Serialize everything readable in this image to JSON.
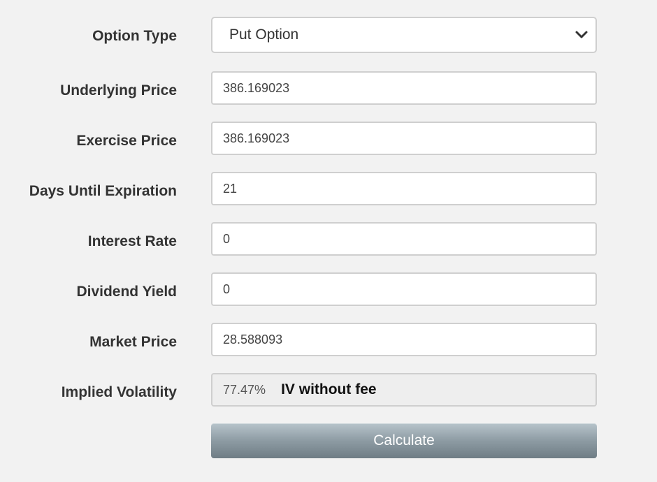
{
  "form": {
    "option_type": {
      "label": "Option Type",
      "value": "Put Option"
    },
    "underlying_price": {
      "label": "Underlying Price",
      "value": "386.169023"
    },
    "exercise_price": {
      "label": "Exercise Price",
      "value": "386.169023"
    },
    "days_until_expiration": {
      "label": "Days Until Expiration",
      "value": "21"
    },
    "interest_rate": {
      "label": "Interest Rate",
      "value": "0"
    },
    "dividend_yield": {
      "label": "Dividend Yield",
      "value": "0"
    },
    "market_price": {
      "label": "Market Price",
      "value": "28.588093"
    },
    "implied_volatility": {
      "label": "Implied Volatility",
      "value": "77.47%",
      "note": "IV without fee"
    },
    "calculate_label": "Calculate"
  },
  "icons": {
    "select_arrow": "chevron-down-icon"
  },
  "colors": {
    "background": "#f2f2f2",
    "label_text": "#333333",
    "field_border": "#cfcfcf",
    "button_gradient_top": "#b7c4cb",
    "button_gradient_bottom": "#6f7d85"
  }
}
